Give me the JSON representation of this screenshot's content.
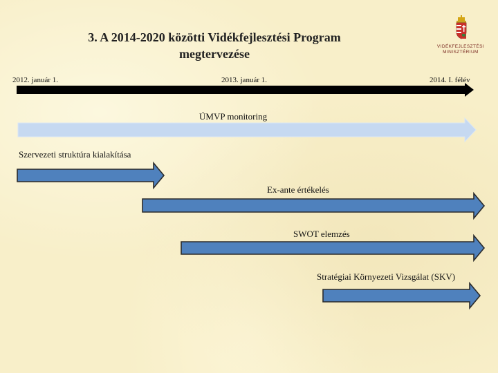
{
  "slide": {
    "title_line1": "3. A 2014-2020 közötti Vidékfejlesztési Program",
    "title_line2": "megtervezése"
  },
  "logo": {
    "line1": "VIDÉKFEJLESZTÉSI",
    "line2": "MINISZTÉRIUM",
    "icon": "hungarian-coat-of-arms-icon"
  },
  "timeline": {
    "start_label": "2012. január 1.",
    "mid_label": "2013. január 1.",
    "end_label": "2014. I. félév"
  },
  "tasks": [
    {
      "label": "ÚMVP monitoring"
    },
    {
      "label": "Szervezeti struktúra kialakítása"
    },
    {
      "label": "Ex-ante értékelés"
    },
    {
      "label": "SWOT elemzés"
    },
    {
      "label": "Stratégiai Környezeti Vizsgálat (SKV)"
    }
  ],
  "colors": {
    "timeline": "#000000",
    "monitoring_arrow": "#c6d9f1",
    "task_arrow": "#4f81bd",
    "arrow_outline": "#2b2b2b"
  }
}
